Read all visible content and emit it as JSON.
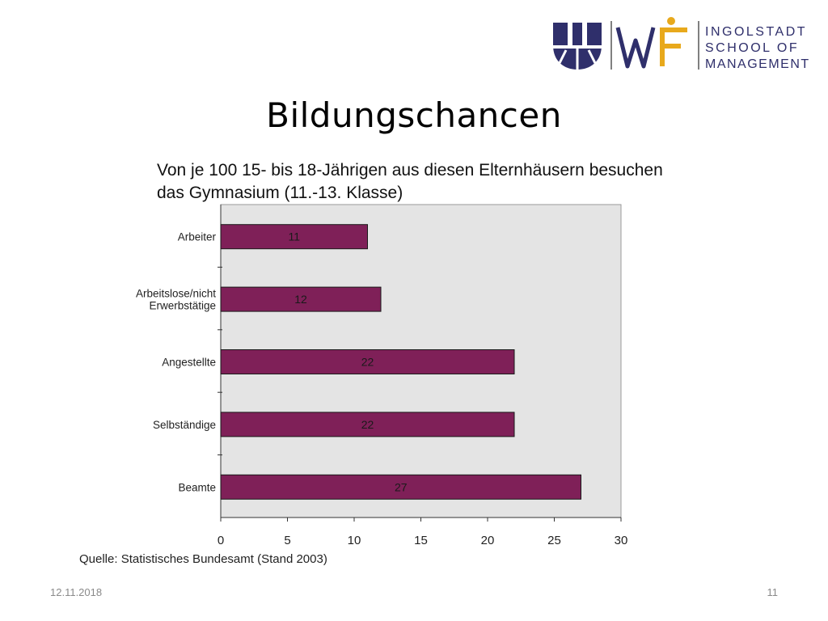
{
  "logo": {
    "lines": [
      "INGOLSTADT",
      "SCHOOL OF",
      "MANAGEMENT"
    ],
    "accent_color": "#2f2f6b",
    "gold_color": "#e8a91c"
  },
  "slide": {
    "title": "Bildungschancen",
    "source": "Quelle: Statistisches Bundesamt (Stand 2003)"
  },
  "footer": {
    "date": "12.11.2018",
    "page": "11"
  },
  "chart_data": {
    "type": "bar",
    "orientation": "horizontal",
    "title_lines": [
      "Von je 100 15- bis 18-Jährigen aus diesen Elternhäusern besuchen",
      "das Gymnasium (11.-13. Klasse)"
    ],
    "categories": [
      [
        "Arbeiter"
      ],
      [
        "Arbeitslose/nicht",
        "Erwerbstätige"
      ],
      [
        "Angestellte"
      ],
      [
        "Selbständige"
      ],
      [
        "Beamte"
      ]
    ],
    "values": [
      11,
      12,
      22,
      22,
      27
    ],
    "xlim": [
      0,
      30
    ],
    "xticks": [
      0,
      5,
      10,
      15,
      20,
      25,
      30
    ],
    "bar_color": "#7f2058",
    "plot_background": "#e4e4e4",
    "grid": false,
    "data_labels": true
  }
}
